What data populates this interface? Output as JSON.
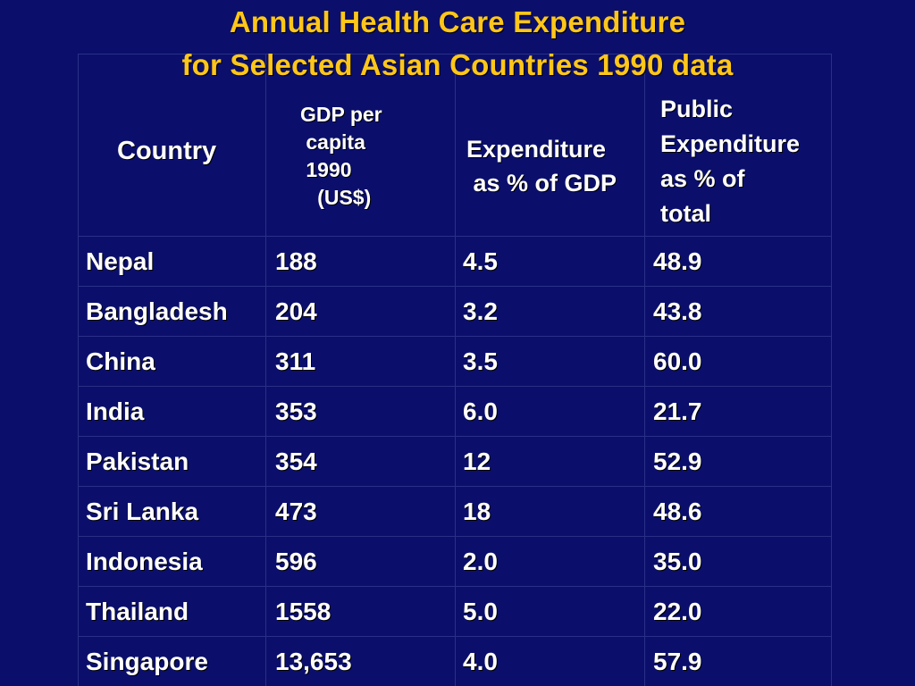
{
  "title": {
    "line1": "Annual Health Care Expenditure",
    "line2": "for Selected Asian Countries 1990 data"
  },
  "headers": {
    "country": "Country",
    "gdp": [
      "GDP per",
      " capita",
      " 1990",
      "   (US$)"
    ],
    "expenditure": [
      "Expenditure",
      " as % of GDP"
    ],
    "public": [
      "Public",
      "Expenditure",
      "as % of",
      "total"
    ]
  },
  "rows": [
    {
      "country": "Nepal",
      "gdp": "188",
      "exp": "4.5",
      "pub": "48.9"
    },
    {
      "country": "Bangladesh",
      "gdp": "204",
      "exp": "3.2",
      "pub": "43.8"
    },
    {
      "country": "China",
      "gdp": "311",
      "exp": "3.5",
      "pub": "60.0"
    },
    {
      "country": "India",
      "gdp": "353",
      "exp": "6.0",
      "pub": "21.7"
    },
    {
      "country": "Pakistan",
      "gdp": "354",
      "exp": "12",
      "pub": "52.9"
    },
    {
      "country": "Sri Lanka",
      "gdp": "473",
      "exp": "18",
      "pub": "48.6"
    },
    {
      "country": "Indonesia",
      "gdp": "596",
      "exp": "2.0",
      "pub": "35.0"
    },
    {
      "country": "Thailand",
      "gdp": "1558",
      "exp": "5.0",
      "pub": "22.0"
    },
    {
      "country": "Singapore",
      "gdp": "13,653",
      "exp": "4.0",
      "pub": "57.9"
    }
  ],
  "colors": {
    "background": "#0b0f6b",
    "title": "#ffc61a",
    "text": "#ffffff",
    "gridline": "#2a2f86"
  }
}
